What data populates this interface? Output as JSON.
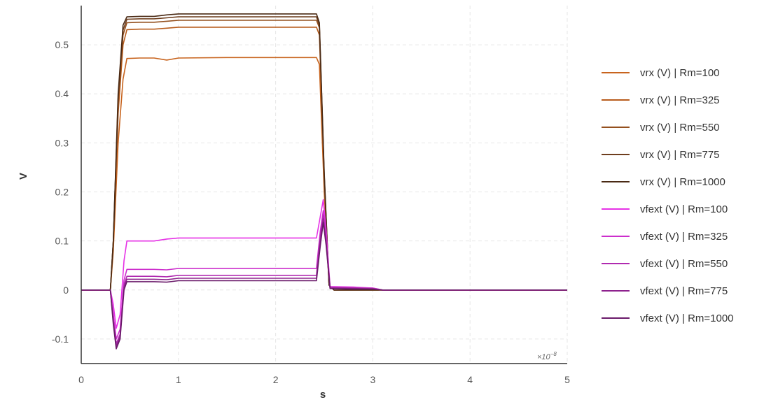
{
  "chart_data": {
    "type": "line",
    "xlabel": "s",
    "ylabel": "V",
    "x_multiplier_label": "×10",
    "x_multiplier_exp": "−8",
    "xlim": [
      0,
      5
    ],
    "ylim": [
      -0.15,
      0.58
    ],
    "x_ticks": [
      0,
      1,
      2,
      3,
      4,
      5
    ],
    "x_tick_labels": [
      "0",
      "1",
      "2",
      "3",
      "4",
      "5"
    ],
    "y_ticks": [
      -0.1,
      0,
      0.1,
      0.2,
      0.3,
      0.4,
      0.5
    ],
    "y_tick_labels": [
      "-0.1",
      "0",
      "0.1",
      "0.2",
      "0.3",
      "0.4",
      "0.5"
    ],
    "grid": true,
    "legend_position": "right",
    "series": [
      {
        "name": "vrx (V) | Rm=100",
        "color": "#c8641e",
        "x": [
          0,
          0.3,
          0.33,
          0.38,
          0.43,
          0.47,
          0.6,
          0.75,
          0.88,
          1.0,
          1.5,
          2.0,
          2.42,
          2.45,
          2.5,
          2.55,
          2.6,
          3.0,
          5.0
        ],
        "y": [
          0,
          0,
          0.08,
          0.3,
          0.43,
          0.472,
          0.473,
          0.473,
          0.469,
          0.473,
          0.474,
          0.474,
          0.474,
          0.46,
          0.2,
          0.01,
          0,
          0,
          0
        ]
      },
      {
        "name": "vrx (V) | Rm=325",
        "color": "#b85c1c",
        "x": [
          0,
          0.3,
          0.33,
          0.38,
          0.43,
          0.47,
          0.6,
          0.75,
          0.88,
          1.0,
          1.5,
          2.0,
          2.42,
          2.45,
          2.5,
          2.55,
          2.6,
          3.0,
          5.0
        ],
        "y": [
          0,
          0,
          0.09,
          0.36,
          0.5,
          0.531,
          0.532,
          0.532,
          0.534,
          0.536,
          0.536,
          0.536,
          0.536,
          0.52,
          0.22,
          0.01,
          0,
          0,
          0
        ]
      },
      {
        "name": "vrx (V) | Rm=550",
        "color": "#94501e",
        "x": [
          0,
          0.3,
          0.33,
          0.38,
          0.43,
          0.47,
          0.6,
          0.75,
          0.88,
          1.0,
          1.5,
          2.0,
          2.42,
          2.45,
          2.5,
          2.55,
          2.6,
          3.0,
          5.0
        ],
        "y": [
          0,
          0,
          0.1,
          0.38,
          0.52,
          0.545,
          0.546,
          0.546,
          0.548,
          0.55,
          0.55,
          0.55,
          0.55,
          0.535,
          0.23,
          0.01,
          0,
          0,
          0
        ]
      },
      {
        "name": "vrx (V) | Rm=775",
        "color": "#6e3e1e",
        "x": [
          0,
          0.3,
          0.33,
          0.38,
          0.43,
          0.47,
          0.6,
          0.75,
          0.88,
          1.0,
          1.5,
          2.0,
          2.42,
          2.45,
          2.5,
          2.55,
          2.6,
          3.0,
          5.0
        ],
        "y": [
          0,
          0,
          0.1,
          0.39,
          0.53,
          0.552,
          0.553,
          0.553,
          0.555,
          0.557,
          0.557,
          0.557,
          0.557,
          0.54,
          0.235,
          0.01,
          0,
          0,
          0
        ]
      },
      {
        "name": "vrx (V) | Rm=1000",
        "color": "#4a2a14",
        "x": [
          0,
          0.3,
          0.33,
          0.38,
          0.43,
          0.47,
          0.6,
          0.75,
          0.88,
          1.0,
          1.5,
          2.0,
          2.42,
          2.45,
          2.5,
          2.55,
          2.6,
          3.0,
          5.0
        ],
        "y": [
          0,
          0,
          0.1,
          0.4,
          0.54,
          0.557,
          0.558,
          0.558,
          0.561,
          0.563,
          0.563,
          0.563,
          0.563,
          0.545,
          0.24,
          0.01,
          0,
          0,
          0
        ]
      },
      {
        "name": "vfext (V) | Rm=100",
        "color": "#e632e6",
        "x": [
          0,
          0.3,
          0.33,
          0.36,
          0.4,
          0.44,
          0.47,
          0.6,
          0.75,
          0.88,
          1.0,
          1.5,
          2.0,
          2.42,
          2.46,
          2.49,
          2.52,
          2.56,
          2.8,
          3.0,
          3.1,
          5.0
        ],
        "y": [
          0,
          0,
          -0.03,
          -0.078,
          -0.05,
          0.06,
          0.1,
          0.1,
          0.1,
          0.104,
          0.106,
          0.106,
          0.106,
          0.106,
          0.15,
          0.184,
          0.12,
          0.007,
          0.006,
          0.004,
          0,
          0
        ]
      },
      {
        "name": "vfext (V) | Rm=325",
        "color": "#cc2ecc",
        "x": [
          0,
          0.3,
          0.33,
          0.36,
          0.4,
          0.44,
          0.47,
          0.6,
          0.75,
          0.88,
          1.0,
          1.5,
          2.0,
          2.42,
          2.46,
          2.49,
          2.52,
          2.56,
          2.8,
          3.0,
          3.1,
          5.0
        ],
        "y": [
          0,
          0,
          -0.05,
          -0.1,
          -0.08,
          0.02,
          0.042,
          0.042,
          0.042,
          0.041,
          0.044,
          0.044,
          0.044,
          0.044,
          0.12,
          0.162,
          0.11,
          0.006,
          0.005,
          0.004,
          0,
          0
        ]
      },
      {
        "name": "vfext (V) | Rm=550",
        "color": "#b02ab0",
        "x": [
          0,
          0.3,
          0.33,
          0.36,
          0.4,
          0.44,
          0.47,
          0.6,
          0.75,
          0.88,
          1.0,
          1.5,
          2.0,
          2.42,
          2.46,
          2.49,
          2.52,
          2.56,
          2.8,
          3.0,
          3.1,
          5.0
        ],
        "y": [
          0,
          0,
          -0.06,
          -0.11,
          -0.09,
          0.01,
          0.028,
          0.028,
          0.028,
          0.027,
          0.03,
          0.03,
          0.03,
          0.03,
          0.11,
          0.152,
          0.1,
          0.005,
          0.004,
          0.003,
          0,
          0
        ]
      },
      {
        "name": "vfext (V) | Rm=775",
        "color": "#8e228e",
        "x": [
          0,
          0.3,
          0.33,
          0.36,
          0.4,
          0.44,
          0.47,
          0.6,
          0.75,
          0.88,
          1.0,
          1.5,
          2.0,
          2.42,
          2.46,
          2.49,
          2.52,
          2.56,
          2.8,
          3.0,
          3.1,
          5.0
        ],
        "y": [
          0,
          0,
          -0.065,
          -0.115,
          -0.095,
          0.005,
          0.022,
          0.022,
          0.022,
          0.021,
          0.024,
          0.024,
          0.024,
          0.024,
          0.1,
          0.145,
          0.095,
          0.004,
          0.003,
          0.002,
          0,
          0
        ]
      },
      {
        "name": "vfext (V) | Rm=1000",
        "color": "#6a1a6a",
        "x": [
          0,
          0.3,
          0.33,
          0.36,
          0.4,
          0.44,
          0.47,
          0.6,
          0.75,
          0.88,
          1.0,
          1.5,
          2.0,
          2.42,
          2.46,
          2.49,
          2.52,
          2.56,
          2.8,
          3.0,
          3.1,
          5.0
        ],
        "y": [
          0,
          0,
          -0.07,
          -0.12,
          -0.1,
          0.0,
          0.017,
          0.017,
          0.017,
          0.016,
          0.019,
          0.019,
          0.019,
          0.019,
          0.09,
          0.138,
          0.09,
          0.003,
          0.002,
          0.002,
          0,
          0
        ]
      }
    ]
  }
}
